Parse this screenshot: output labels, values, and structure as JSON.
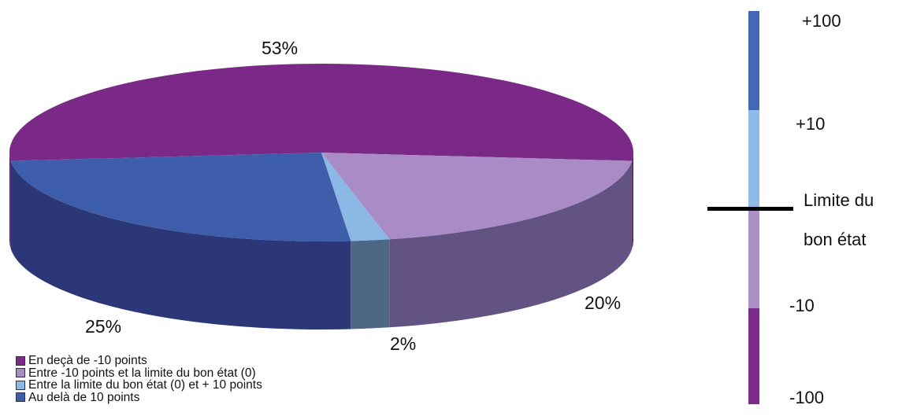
{
  "chart_data": {
    "type": "pie",
    "title": "",
    "slices": [
      {
        "label": "En deçà de -10 points",
        "value": 53,
        "value_label": "53%",
        "color": "#7a2a86",
        "side_color": "#4f1a5c"
      },
      {
        "label": "Entre -10 points et la limite du bon état (0)",
        "value": 20,
        "value_label": "20%",
        "color": "#a98bc6",
        "side_color": "#625383"
      },
      {
        "label": "Entre la limite du bon état (0) et + 10 points",
        "value": 2,
        "value_label": "2%",
        "color": "#8cb8e6",
        "side_color": "#4e6785"
      },
      {
        "label": "Au delà de 10 points",
        "value": 25,
        "value_label": "25%",
        "color": "#3e5eac",
        "side_color": "#2c3777"
      }
    ],
    "legend_position": "bottom-left"
  },
  "scale": {
    "segments": [
      {
        "color": "#4467b6",
        "from": 10,
        "to": 100
      },
      {
        "color": "#90bbe8",
        "from": 0,
        "to": 10
      },
      {
        "color": "#ac91c8",
        "from": -10,
        "to": 0
      },
      {
        "color": "#7b2b88",
        "from": -100,
        "to": -10
      }
    ],
    "labels": {
      "plus100": "+100",
      "plus10": "+10",
      "limit_line1": "Limite du",
      "limit_line2": "bon état",
      "minus10": "-10",
      "minus100": "-100"
    },
    "line_color": "#000000"
  }
}
